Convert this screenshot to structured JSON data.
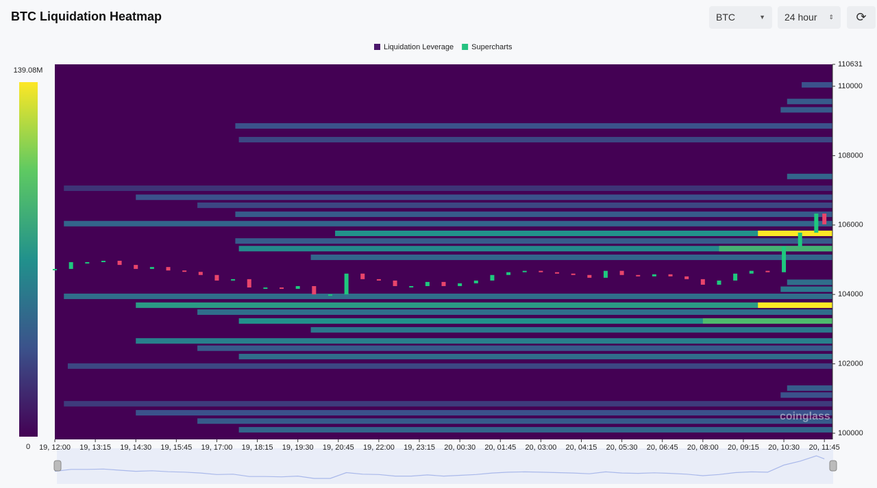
{
  "chart_data": {
    "type": "heatmap",
    "title": "BTC Liquidation Heatmap",
    "legend": [
      {
        "name": "Liquidation Leverage",
        "color": "#4b176b"
      },
      {
        "name": "Supercharts",
        "color": "#26c281"
      }
    ],
    "colormap": "viridis",
    "clim": [
      0,
      139080000
    ],
    "cticks": [
      0,
      {
        "value": 139080000,
        "label": "139.08M"
      }
    ],
    "xlim": [
      0,
      24
    ],
    "xticks": [
      {
        "value": 0,
        "label": "19, 12:00"
      },
      {
        "value": 1.25,
        "label": "19, 13:15"
      },
      {
        "value": 2.5,
        "label": "19, 14:30"
      },
      {
        "value": 3.75,
        "label": "19, 15:45"
      },
      {
        "value": 5,
        "label": "19, 17:00"
      },
      {
        "value": 6.25,
        "label": "19, 18:15"
      },
      {
        "value": 7.5,
        "label": "19, 19:30"
      },
      {
        "value": 8.75,
        "label": "19, 20:45"
      },
      {
        "value": 10,
        "label": "19, 22:00"
      },
      {
        "value": 11.25,
        "label": "19, 23:15"
      },
      {
        "value": 12.5,
        "label": "20, 00:30"
      },
      {
        "value": 13.75,
        "label": "20, 01:45"
      },
      {
        "value": 15,
        "label": "20, 03:00"
      },
      {
        "value": 16.25,
        "label": "20, 04:15"
      },
      {
        "value": 17.5,
        "label": "20, 05:30"
      },
      {
        "value": 18.75,
        "label": "20, 06:45"
      },
      {
        "value": 20,
        "label": "20, 08:00"
      },
      {
        "value": 21.25,
        "label": "20, 09:15"
      },
      {
        "value": 22.5,
        "label": "20, 10:30"
      },
      {
        "value": 23.75,
        "label": "20, 11:45"
      }
    ],
    "ylim": [
      99822,
      110631
    ],
    "yticks": [
      100000,
      102000,
      104000,
      106000,
      108000,
      110000,
      110631
    ],
    "bands": {
      "y": [
        108856,
        108460,
        107060,
        106800,
        106570,
        106310,
        106040,
        105760,
        105540,
        105320,
        105070,
        103945,
        103690,
        103490,
        103235,
        102980,
        102660,
        102450,
        102210,
        101935,
        100850,
        100590,
        100350,
        100100,
        110040,
        109560,
        109320,
        107400,
        104350,
        104150,
        101300,
        101100,
        105760,
        103690,
        105320,
        103235
      ],
      "x": [
        5.57,
        5.68,
        0.28,
        2.5,
        4.4,
        5.57,
        0.28,
        8.65,
        5.57,
        5.68,
        7.9,
        0.28,
        2.5,
        4.4,
        5.68,
        7.9,
        2.5,
        4.4,
        5.68,
        0.4,
        0.28,
        2.5,
        4.4,
        5.68,
        23.05,
        22.6,
        22.4,
        22.6,
        22.6,
        22.4,
        22.6,
        22.4,
        21.7,
        21.7,
        20.5,
        20.0
      ],
      "values": [
        35000000,
        30000000,
        22000000,
        35000000,
        30000000,
        40000000,
        45000000,
        70000000,
        40000000,
        65000000,
        45000000,
        50000000,
        75000000,
        50000000,
        70000000,
        55000000,
        60000000,
        40000000,
        50000000,
        30000000,
        25000000,
        35000000,
        40000000,
        45000000,
        35000000,
        40000000,
        40000000,
        45000000,
        50000000,
        55000000,
        40000000,
        35000000,
        139080000,
        139080000,
        90000000,
        95000000
      ]
    },
    "price": {
      "up_color": "#1fc77e",
      "down_color": "#e8456b",
      "x": [
        0,
        0.5,
        1,
        1.5,
        2,
        2.5,
        3,
        3.5,
        4,
        4.5,
        5,
        5.5,
        6,
        6.5,
        7,
        7.5,
        8,
        8.5,
        9,
        9.5,
        10,
        10.5,
        11,
        11.5,
        12,
        12.5,
        13,
        13.5,
        14,
        14.5,
        15,
        15.5,
        16,
        16.5,
        17,
        17.5,
        18,
        18.5,
        19,
        19.5,
        20,
        20.5,
        21,
        21.5,
        22,
        22.5,
        23,
        23.5,
        23.75
      ],
      "values": [
        104735,
        104930,
        104930,
        104970,
        104850,
        104735,
        104790,
        104690,
        104650,
        104560,
        104400,
        104440,
        104200,
        104200,
        104160,
        104240,
        104000,
        104000,
        104600,
        104440,
        104400,
        104240,
        104240,
        104360,
        104240,
        104320,
        104400,
        104560,
        104640,
        104680,
        104640,
        104600,
        104560,
        104480,
        104680,
        104560,
        104520,
        104580,
        104520,
        104440,
        104280,
        104400,
        104600,
        104680,
        104640,
        105380,
        105780,
        106330,
        106020
      ]
    },
    "watermark": "coinglass"
  },
  "controls": {
    "symbol": "BTC",
    "range": "24 hour"
  }
}
